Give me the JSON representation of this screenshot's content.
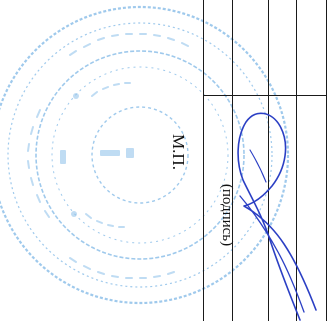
{
  "document": {
    "stamp_area_label": "М.П.",
    "signature_caption": "(подпись)"
  },
  "colors": {
    "stamp_ink": "#7fb8e6",
    "signature_ink": "#2b3fc4",
    "table_lines": "#1a1a1a"
  },
  "icons": {
    "stamp": "round-seal-icon",
    "signature": "handwritten-signature-icon"
  }
}
